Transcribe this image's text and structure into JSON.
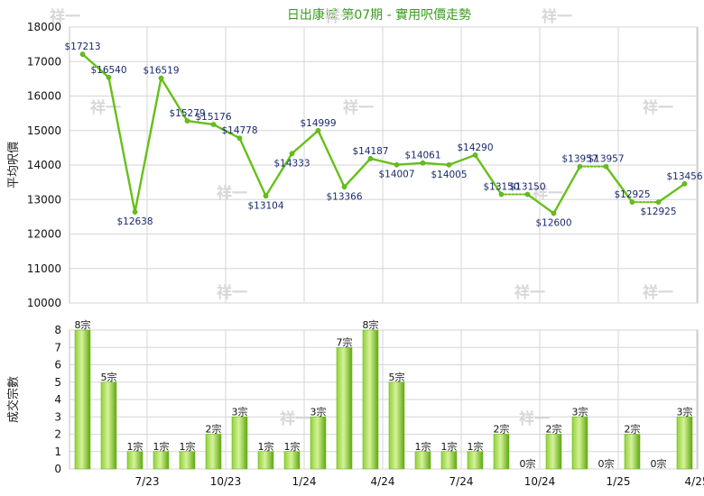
{
  "chart_data": [
    {
      "type": "line",
      "title": "日出康城 第07期 - 實用呎價走勢",
      "ylabel": "平均呎價",
      "ylim": [
        10000,
        18000
      ],
      "yticks": [
        10000,
        11000,
        12000,
        13000,
        14000,
        15000,
        16000,
        17000,
        18000
      ],
      "grid": true,
      "series": [
        {
          "values": [
            17213,
            16540,
            12638,
            16519,
            15279,
            15176,
            14778,
            13104,
            14333,
            14999,
            13366,
            14187,
            14007,
            14061,
            14005,
            14290,
            13150,
            13150,
            12600,
            13957,
            13957,
            12925,
            12925,
            13456
          ]
        }
      ],
      "labels": [
        "$17213",
        "$16540",
        "$12638",
        "$16519",
        "$15279",
        "$15176",
        "$14778",
        "$13104",
        "$14333",
        "$14999",
        "$13366",
        "$14187",
        "$14007",
        "$14061",
        "$14005",
        "$14290",
        "$13150",
        "$13150",
        "$12600",
        "$13957",
        "$13957",
        "$12925",
        "$12925",
        "$13456"
      ],
      "dashed_segments_after_index": [
        16,
        19,
        21
      ]
    },
    {
      "type": "bar",
      "ylabel": "成交宗數",
      "ylim": [
        0,
        8
      ],
      "yticks": [
        0,
        1,
        2,
        3,
        4,
        5,
        6,
        7,
        8
      ],
      "x_tick_labels": [
        "7/23",
        "10/23",
        "1/24",
        "4/24",
        "7/24",
        "10/24",
        "1/25",
        "4/25"
      ],
      "series": [
        {
          "values": [
            8,
            5,
            1,
            1,
            1,
            2,
            3,
            1,
            1,
            3,
            7,
            8,
            5,
            1,
            1,
            1,
            2,
            0,
            2,
            3,
            0,
            2,
            0,
            3
          ]
        }
      ],
      "labels": [
        "8宗",
        "5宗",
        "1宗",
        "1宗",
        "1宗",
        "2宗",
        "3宗",
        "1宗",
        "1宗",
        "3宗",
        "7宗",
        "8宗",
        "5宗",
        "1宗",
        "1宗",
        "1宗",
        "2宗",
        "0宗",
        "2宗",
        "3宗",
        "0宗",
        "2宗",
        "0宗",
        "3宗"
      ]
    }
  ],
  "watermark": "祥一",
  "colors": {
    "line": "#66c01a",
    "bar_light": "#c8ec7a",
    "bar_dark": "#5ea80f",
    "title": "#3a9a1e",
    "grid": "#d6d6d6"
  }
}
